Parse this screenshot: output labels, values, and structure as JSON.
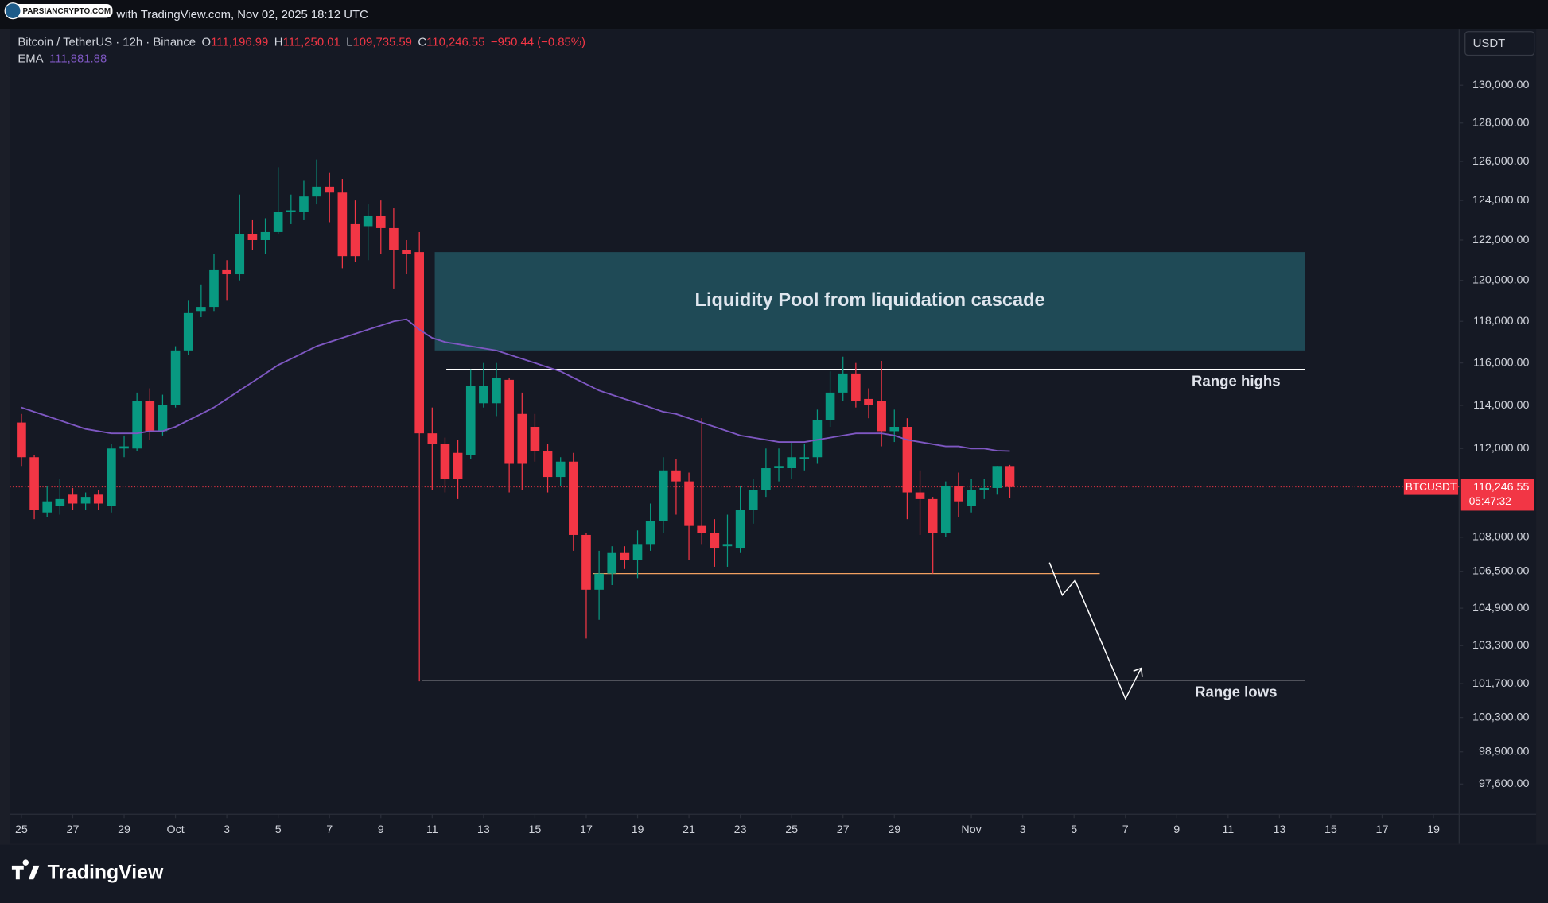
{
  "top_bar": {
    "brand": "PARSIANCRYPTO.COM",
    "caption": "with TradingView.com, Nov 02, 2025 18:12 UTC"
  },
  "header": {
    "symbol": "Bitcoin / TetherUS · 12h · Binance",
    "o_key": "O",
    "o": "111,196.99",
    "h_key": "H",
    "h": "111,250.01",
    "l_key": "L",
    "l": "109,735.59",
    "c_key": "C",
    "c": "110,246.55",
    "change": "−950.44 (−0.85%)",
    "ema_value": "111,881.88"
  },
  "currency": "USDT",
  "price_tag": {
    "symbol": "BTCUSDT",
    "price": "110,246.55",
    "countdown": "05:47:32"
  },
  "footer_brand": "TradingView",
  "chart_data": {
    "type": "candlestick",
    "log_scale": true,
    "up_color": "#089981",
    "down_color": "#f23645",
    "open": [
      113200,
      111600,
      109100,
      109400,
      109900,
      109500,
      109900,
      109400,
      112000,
      112000,
      114200,
      112800,
      114000,
      116600,
      118500,
      118700,
      120500,
      120300,
      122300,
      122000,
      122400,
      123400,
      123400,
      124200,
      124700,
      124400,
      122800,
      122700,
      123200,
      122600,
      121500,
      121400,
      112700,
      112200,
      111800,
      111700,
      114100,
      114100,
      115200,
      113600,
      113000,
      111900,
      110700,
      111400,
      108100,
      105700,
      106400,
      107300,
      107000,
      107700,
      108700,
      111000,
      110500,
      108500,
      108200,
      107600,
      107500,
      109200,
      110100,
      111100,
      111100,
      111500,
      111600,
      113300,
      114600,
      115500,
      114300,
      114200,
      112800,
      113000,
      110000,
      109700,
      108200,
      110300,
      109400,
      110100,
      110200,
      111196.99
    ],
    "high": [
      113600,
      111700,
      110300,
      110600,
      110200,
      110000,
      110100,
      112200,
      112600,
      114600,
      114800,
      114500,
      116800,
      119000,
      119800,
      121300,
      121000,
      124300,
      123000,
      123100,
      125700,
      124300,
      125000,
      126100,
      125400,
      125100,
      124000,
      123800,
      124000,
      123600,
      122000,
      122400,
      113900,
      112500,
      112400,
      115700,
      116000,
      116000,
      115300,
      114600,
      113600,
      112200,
      111600,
      111800,
      108200,
      107400,
      107600,
      107600,
      108300,
      109500,
      111600,
      111500,
      110900,
      113400,
      108800,
      109000,
      110300,
      110600,
      112000,
      112000,
      112300,
      112200,
      113800,
      115600,
      116300,
      116000,
      114800,
      116100,
      113800,
      113400,
      111000,
      109800,
      110500,
      110900,
      110600,
      110600,
      111200,
      111250.01
    ],
    "low": [
      111200,
      108800,
      108900,
      109000,
      109200,
      109200,
      109200,
      109100,
      111600,
      111900,
      112400,
      112600,
      113900,
      116400,
      118200,
      118500,
      119000,
      120000,
      121500,
      121300,
      122300,
      122800,
      123000,
      123800,
      122900,
      120600,
      120900,
      121000,
      121300,
      119600,
      120300,
      101800,
      110100,
      110000,
      109700,
      111500,
      113900,
      113500,
      110000,
      110100,
      111400,
      110000,
      110300,
      107400,
      103600,
      104400,
      105900,
      106600,
      106200,
      107400,
      108200,
      109000,
      107000,
      107700,
      106700,
      106700,
      107300,
      108600,
      109800,
      110500,
      110600,
      111000,
      111300,
      113000,
      114200,
      113900,
      113400,
      112100,
      112300,
      108800,
      108100,
      106400,
      108000,
      108900,
      109100,
      109700,
      109900,
      109735.59
    ],
    "close": [
      111600,
      109200,
      109600,
      109700,
      109500,
      109800,
      109500,
      112000,
      112100,
      114200,
      112800,
      114000,
      116600,
      118400,
      118700,
      120500,
      120300,
      122300,
      122000,
      122400,
      123400,
      123500,
      124200,
      124700,
      124400,
      121200,
      121200,
      123200,
      122600,
      121500,
      121300,
      112700,
      112200,
      110600,
      110600,
      114900,
      114900,
      115300,
      111300,
      111300,
      111900,
      110700,
      111400,
      108100,
      105700,
      106400,
      107300,
      107000,
      107700,
      108700,
      111000,
      110500,
      108500,
      108200,
      107500,
      107700,
      109200,
      110100,
      111100,
      111200,
      111600,
      111600,
      113300,
      114600,
      115500,
      114200,
      114000,
      112800,
      113000,
      110000,
      109700,
      108200,
      110300,
      109600,
      110100,
      110200,
      111200,
      110246.55
    ],
    "series": [
      {
        "name": "EMA",
        "color": "#7e57c2",
        "values": [
          113900,
          113700,
          113500,
          113300,
          113100,
          112900,
          112800,
          112700,
          112700,
          112700,
          112800,
          112800,
          113000,
          113300,
          113600,
          113900,
          114300,
          114700,
          115100,
          115500,
          115900,
          116200,
          116500,
          116800,
          117000,
          117200,
          117400,
          117600,
          117800,
          118000,
          118100,
          117600,
          117200,
          117000,
          116900,
          116800,
          116700,
          116600,
          116400,
          116200,
          116000,
          115800,
          115600,
          115300,
          115000,
          114700,
          114500,
          114300,
          114100,
          113900,
          113700,
          113600,
          113400,
          113200,
          113000,
          112800,
          112600,
          112500,
          112400,
          112300,
          112300,
          112300,
          112400,
          112500,
          112600,
          112700,
          112700,
          112700,
          112600,
          112400,
          112300,
          112200,
          112100,
          112100,
          112000,
          112000,
          111900,
          111881.88
        ]
      }
    ],
    "xlim": [
      -0.9,
      112
    ],
    "xticks": [
      {
        "value": 0,
        "label": "25"
      },
      {
        "value": 4,
        "label": "27"
      },
      {
        "value": 8,
        "label": "29"
      },
      {
        "value": 12,
        "label": "Oct"
      },
      {
        "value": 16,
        "label": "3"
      },
      {
        "value": 20,
        "label": "5"
      },
      {
        "value": 24,
        "label": "7"
      },
      {
        "value": 28,
        "label": "9"
      },
      {
        "value": 32,
        "label": "11"
      },
      {
        "value": 36,
        "label": "13"
      },
      {
        "value": 40,
        "label": "15"
      },
      {
        "value": 44,
        "label": "17"
      },
      {
        "value": 48,
        "label": "19"
      },
      {
        "value": 52,
        "label": "21"
      },
      {
        "value": 56,
        "label": "23"
      },
      {
        "value": 60,
        "label": "25"
      },
      {
        "value": 64,
        "label": "27"
      },
      {
        "value": 68,
        "label": "29"
      },
      {
        "value": 74,
        "label": "Nov"
      },
      {
        "value": 78,
        "label": "3"
      },
      {
        "value": 82,
        "label": "5"
      },
      {
        "value": 86,
        "label": "7"
      },
      {
        "value": 90,
        "label": "9"
      },
      {
        "value": 94,
        "label": "11"
      },
      {
        "value": 98,
        "label": "13"
      },
      {
        "value": 102,
        "label": "15"
      },
      {
        "value": 106,
        "label": "17"
      },
      {
        "value": 110,
        "label": "19"
      }
    ],
    "ylim": [
      96400,
      133000
    ],
    "yticks": [
      {
        "value": 130000,
        "label": "130,000.00"
      },
      {
        "value": 128000,
        "label": "128,000.00"
      },
      {
        "value": 126000,
        "label": "126,000.00"
      },
      {
        "value": 124000,
        "label": "124,000.00"
      },
      {
        "value": 122000,
        "label": "122,000.00"
      },
      {
        "value": 120000,
        "label": "120,000.00"
      },
      {
        "value": 118000,
        "label": "118,000.00"
      },
      {
        "value": 116000,
        "label": "116,000.00"
      },
      {
        "value": 114000,
        "label": "114,000.00"
      },
      {
        "value": 112000,
        "label": "112,000.00"
      },
      {
        "value": 108000,
        "label": "108,000.00"
      },
      {
        "value": 106500,
        "label": "106,500.00"
      },
      {
        "value": 104900,
        "label": "104,900.00"
      },
      {
        "value": 103300,
        "label": "103,300.00"
      },
      {
        "value": 101700,
        "label": "101,700.00"
      },
      {
        "value": 100300,
        "label": "100,300.00"
      },
      {
        "value": 98900,
        "label": "98,900.00"
      },
      {
        "value": 97600,
        "label": "97,600.00"
      }
    ],
    "zones": [
      {
        "label": "Liquidity Pool from liquidation cascade",
        "color": "#1f4a56",
        "x": [
          32.2,
          100
        ],
        "y": [
          116600,
          121400
        ]
      }
    ],
    "levels": [
      {
        "label": "Range highs",
        "value": 115700,
        "x": [
          33.1,
          100
        ],
        "color": "#ffffff"
      },
      {
        "label": "Range lows",
        "value": 101850,
        "x": [
          31.2,
          100
        ],
        "color": "#ffffff"
      },
      {
        "value": 106400,
        "x": [
          44.5,
          84
        ],
        "color": "#f0a060"
      }
    ]
  }
}
